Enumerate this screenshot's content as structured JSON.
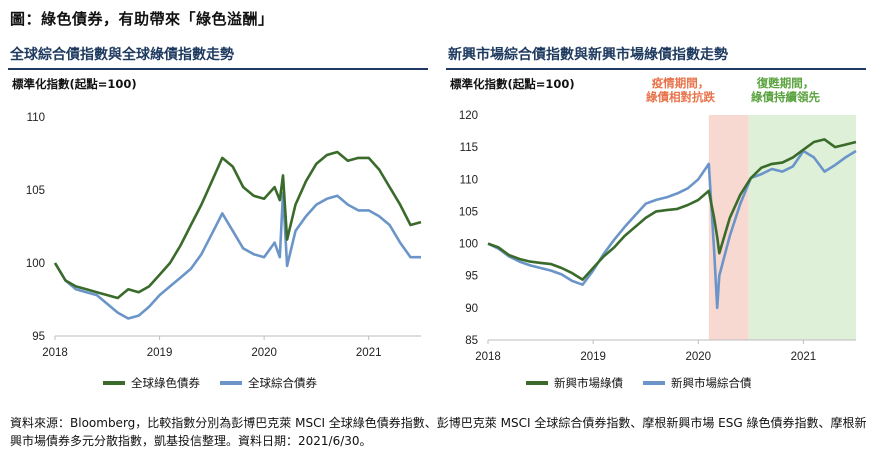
{
  "figure_title": "圖：綠色債券，有助帶來「綠色溢酬」",
  "panels": {
    "left": {
      "title": "全球綜合債指數與全球綠債指數走勢",
      "unit_label": "標準化指數(起點=100)",
      "legend": [
        "全球綠色債券",
        "全球綜合債券"
      ]
    },
    "right": {
      "title": "新興市場綜合債指數與新興市場綠債指數走勢",
      "unit_label": "標準化指數(起點=100)",
      "legend": [
        "新興市場綠債",
        "新興市場綜合債"
      ],
      "annotations": {
        "epidemic": "疫情期間，\n綠債相對抗跌",
        "recovery": "復甦期間，\n綠債持續領先"
      }
    }
  },
  "colors": {
    "green_series": "#3a6b2a",
    "blue_series": "#6b95c9",
    "epidemic_band": "#f7d9d2",
    "recovery_band": "#dff0d9",
    "epidemic_text": "#e8734a",
    "recovery_text": "#5aa33f",
    "title_rule": "#1f3864"
  },
  "chart_data": [
    {
      "type": "line",
      "title": "全球綜合債指數與全球綠債指數走勢",
      "ylabel": "標準化指數(起點=100)",
      "xlabel": "",
      "xlim": [
        2018.0,
        2021.5
      ],
      "ylim": [
        95,
        110
      ],
      "x_ticks": [
        "2018",
        "2019",
        "2020",
        "2021"
      ],
      "y_ticks": [
        95,
        100,
        105,
        110
      ],
      "grid": false,
      "legend_position": "bottom",
      "x": [
        2018.0,
        2018.1,
        2018.2,
        2018.3,
        2018.4,
        2018.5,
        2018.6,
        2018.7,
        2018.8,
        2018.9,
        2019.0,
        2019.1,
        2019.2,
        2019.3,
        2019.4,
        2019.5,
        2019.6,
        2019.7,
        2019.8,
        2019.9,
        2020.0,
        2020.1,
        2020.15,
        2020.18,
        2020.22,
        2020.3,
        2020.4,
        2020.5,
        2020.6,
        2020.7,
        2020.8,
        2020.9,
        2021.0,
        2021.1,
        2021.2,
        2021.3,
        2021.4,
        2021.5
      ],
      "series": [
        {
          "name": "全球綠色債券",
          "values": [
            100.0,
            98.8,
            98.4,
            98.2,
            98.0,
            97.8,
            97.6,
            98.2,
            98.0,
            98.4,
            99.2,
            100.0,
            101.2,
            102.6,
            104.0,
            105.6,
            107.2,
            106.6,
            105.2,
            104.6,
            104.4,
            105.2,
            104.3,
            106.0,
            101.6,
            104.0,
            105.6,
            106.8,
            107.4,
            107.6,
            107.0,
            107.2,
            107.2,
            106.4,
            105.2,
            104.0,
            102.6,
            102.8
          ]
        },
        {
          "name": "全球綜合債券",
          "values": [
            100.0,
            98.8,
            98.2,
            98.0,
            97.8,
            97.2,
            96.6,
            96.2,
            96.4,
            97.0,
            97.8,
            98.4,
            99.0,
            99.6,
            100.6,
            102.0,
            103.4,
            102.2,
            101.0,
            100.6,
            100.4,
            101.4,
            100.4,
            104.8,
            99.8,
            102.2,
            103.2,
            104.0,
            104.4,
            104.6,
            104.0,
            103.6,
            103.6,
            103.2,
            102.6,
            101.4,
            100.4,
            100.4
          ]
        }
      ]
    },
    {
      "type": "line",
      "title": "新興市場綜合債指數與新興市場綠債指數走勢",
      "ylabel": "標準化指數(起點=100)",
      "xlabel": "",
      "xlim": [
        2018.0,
        2021.5
      ],
      "ylim": [
        85,
        120
      ],
      "x_ticks": [
        "2018",
        "2019",
        "2020",
        "2021"
      ],
      "y_ticks": [
        85,
        90,
        95,
        100,
        105,
        110,
        115,
        120
      ],
      "grid": false,
      "legend_position": "bottom",
      "shaded_periods": [
        {
          "label": "疫情期間，綠債相對抗跌",
          "x_range": [
            2020.1,
            2020.48
          ]
        },
        {
          "label": "復甦期間，綠債持續領先",
          "x_range": [
            2020.48,
            2021.5
          ]
        }
      ],
      "x": [
        2018.0,
        2018.1,
        2018.2,
        2018.3,
        2018.4,
        2018.5,
        2018.6,
        2018.7,
        2018.8,
        2018.9,
        2019.0,
        2019.1,
        2019.2,
        2019.3,
        2019.4,
        2019.5,
        2019.6,
        2019.7,
        2019.8,
        2019.9,
        2020.0,
        2020.1,
        2020.15,
        2020.18,
        2020.2,
        2020.3,
        2020.4,
        2020.5,
        2020.6,
        2020.7,
        2020.8,
        2020.9,
        2021.0,
        2021.1,
        2021.2,
        2021.3,
        2021.4,
        2021.5
      ],
      "series": [
        {
          "name": "新興市場綠債",
          "values": [
            100.0,
            99.4,
            98.2,
            97.6,
            97.2,
            97.0,
            96.8,
            96.2,
            95.4,
            94.4,
            96.2,
            98.0,
            99.4,
            101.2,
            102.6,
            104.0,
            105.0,
            105.2,
            105.4,
            106.0,
            106.8,
            108.2,
            104.0,
            101.0,
            98.5,
            104.0,
            107.6,
            110.2,
            111.8,
            112.4,
            112.6,
            113.4,
            114.6,
            115.8,
            116.2,
            115.0,
            115.4,
            115.8
          ]
        },
        {
          "name": "新興市場綜合債",
          "values": [
            100.0,
            99.2,
            98.0,
            97.2,
            96.6,
            96.2,
            95.8,
            95.2,
            94.2,
            93.6,
            95.8,
            98.4,
            100.6,
            102.6,
            104.4,
            106.2,
            106.8,
            107.2,
            107.8,
            108.6,
            110.0,
            112.4,
            99.0,
            90.0,
            95.0,
            101.2,
            106.2,
            110.2,
            110.8,
            111.6,
            111.2,
            112.0,
            114.4,
            113.4,
            111.2,
            112.2,
            113.4,
            114.4
          ]
        }
      ]
    }
  ],
  "source_text": "資料來源：Bloomberg，比較指數分別為彭博巴克萊 MSCI 全球綠色債券指數、彭博巴克萊 MSCI 全球綜合債券指數、摩根新興市場 ESG 綠色債券指數、摩根新興市場債券多元分散指數，凱基投信整理。資料日期：2021/6/30。"
}
